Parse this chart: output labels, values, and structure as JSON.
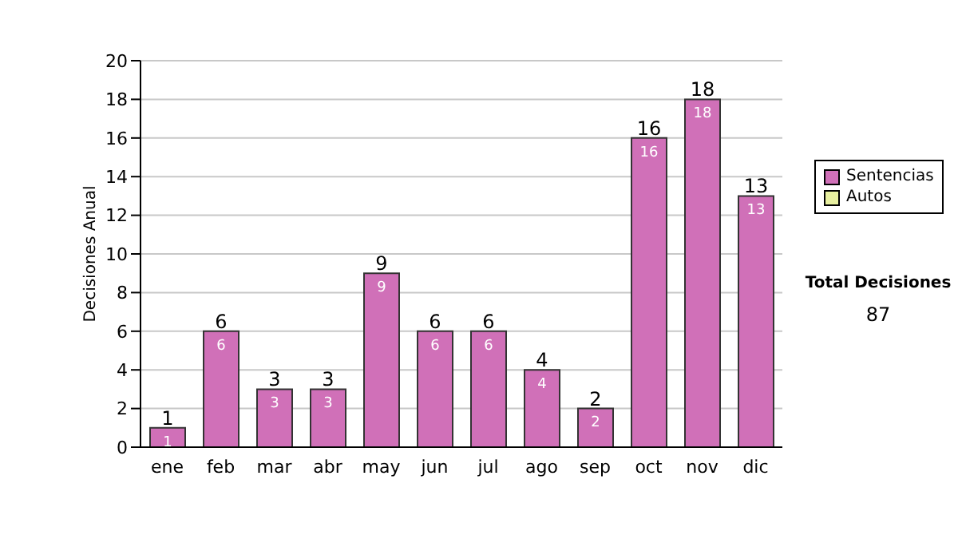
{
  "chart_data": {
    "type": "bar",
    "ylabel": "Decisiones Anual",
    "categories": [
      "ene",
      "feb",
      "mar",
      "abr",
      "may",
      "jun",
      "jul",
      "ago",
      "sep",
      "oct",
      "nov",
      "dic"
    ],
    "series": [
      {
        "name": "Sentencias",
        "color": "#d070b8",
        "values": [
          1,
          6,
          3,
          3,
          9,
          6,
          6,
          4,
          2,
          16,
          18,
          13
        ],
        "value_labels": [
          "1",
          "6",
          "3",
          "3",
          "9",
          "6",
          "6",
          "4",
          "2",
          "16",
          "18",
          "13"
        ]
      },
      {
        "name": "Autos",
        "color": "#e8f0a0",
        "values": [
          null,
          null,
          null,
          null,
          null,
          null,
          null,
          null,
          null,
          null,
          null,
          null
        ]
      }
    ],
    "stacked": true,
    "totals": [
      "1",
      "6",
      "3",
      "3",
      "9",
      "6",
      "6",
      "4",
      "2",
      "16",
      "18",
      "13"
    ],
    "ylim": [
      0,
      20
    ],
    "yticks": [
      0,
      2,
      4,
      6,
      8,
      10,
      12,
      14,
      16,
      18,
      20
    ],
    "grid": "y",
    "legend": "right",
    "annotations": [
      "Total Decisiones",
      "87"
    ]
  }
}
